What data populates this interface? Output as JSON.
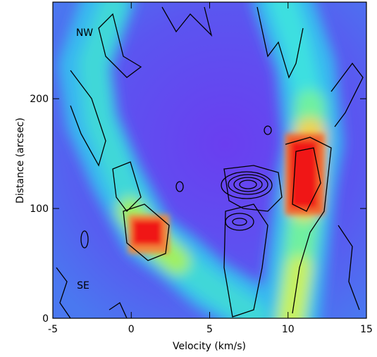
{
  "chart_data": {
    "type": "heatmap",
    "xlabel": "Velocity (km/s)",
    "ylabel": "Distance (arcsec)",
    "xlim": [
      -5,
      15
    ],
    "ylim": [
      0,
      288
    ],
    "xticks": [
      -5,
      0,
      5,
      10,
      15
    ],
    "yticks": [
      0,
      100,
      200
    ],
    "annotations": [
      "NW",
      "SE"
    ]
  }
}
